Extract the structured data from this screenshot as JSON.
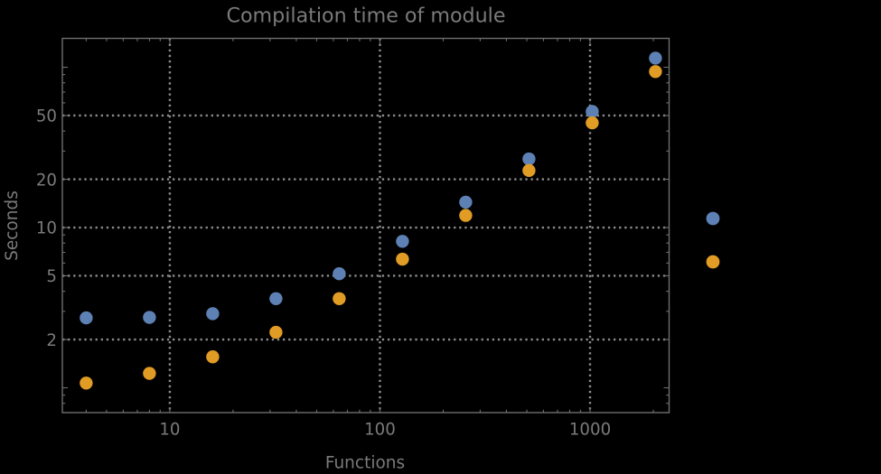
{
  "title": "Compilation time of module",
  "xlabel": "Functions",
  "ylabel": "Seconds",
  "colors": {
    "background": "#000000",
    "frame": "#6e6e6e",
    "grid": "#8d8d8d",
    "text": "#7a7a7a",
    "series1": "#5E81B5",
    "series2": "#E09C24"
  },
  "chart_data": {
    "type": "scatter",
    "xscale": "log",
    "yscale": "log",
    "title": "Compilation time of module",
    "xlabel": "Functions",
    "ylabel": "Seconds",
    "x": [
      4,
      8,
      16,
      32,
      64,
      128,
      256,
      512,
      1024,
      2048
    ],
    "series": [
      {
        "name": "series-1",
        "color": "#5E81B5",
        "values": [
          2.73,
          2.75,
          2.9,
          3.6,
          5.15,
          8.2,
          14.4,
          26.8,
          53,
          114
        ]
      },
      {
        "name": "series-2",
        "color": "#E09C24",
        "values": [
          1.07,
          1.23,
          1.56,
          2.22,
          3.6,
          6.35,
          11.9,
          22.7,
          45,
          94
        ]
      }
    ],
    "xlim": [
      3.08,
      2378
    ],
    "ylim": [
      0.7,
      151.5
    ],
    "x_gridlines": [
      10,
      100,
      1000
    ],
    "y_gridlines": [
      2,
      5,
      10,
      20,
      50
    ],
    "x_tick_labels": [
      {
        "value": 10,
        "label": "10"
      },
      {
        "value": 100,
        "label": "100"
      },
      {
        "value": 1000,
        "label": "1000"
      }
    ],
    "y_tick_labels": [
      {
        "value": 2,
        "label": "2"
      },
      {
        "value": 5,
        "label": "5"
      },
      {
        "value": 10,
        "label": "10"
      },
      {
        "value": 20,
        "label": "20"
      },
      {
        "value": 50,
        "label": "50"
      }
    ],
    "grid_style": "dotted",
    "legend": {
      "position": "right-outside",
      "entries": [
        {
          "label": "",
          "color": "#5E81B5"
        },
        {
          "label": "",
          "color": "#E09C24"
        }
      ]
    },
    "marker": {
      "shape": "circle",
      "radius": 7.2
    }
  }
}
